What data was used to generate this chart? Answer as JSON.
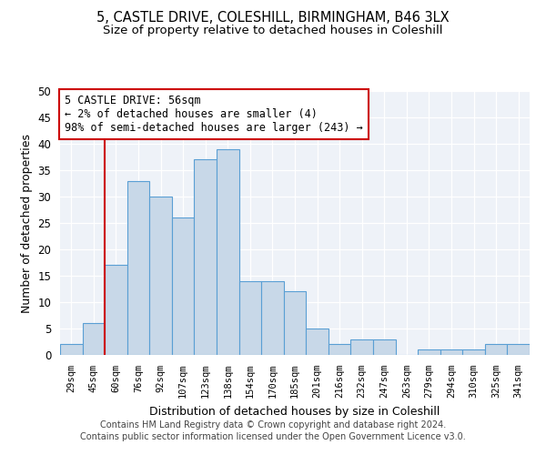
{
  "title_line1": "5, CASTLE DRIVE, COLESHILL, BIRMINGHAM, B46 3LX",
  "title_line2": "Size of property relative to detached houses in Coleshill",
  "xlabel": "Distribution of detached houses by size in Coleshill",
  "ylabel": "Number of detached properties",
  "bar_labels": [
    "29sqm",
    "45sqm",
    "60sqm",
    "76sqm",
    "92sqm",
    "107sqm",
    "123sqm",
    "138sqm",
    "154sqm",
    "170sqm",
    "185sqm",
    "201sqm",
    "216sqm",
    "232sqm",
    "247sqm",
    "263sqm",
    "279sqm",
    "294sqm",
    "310sqm",
    "325sqm",
    "341sqm"
  ],
  "bar_values": [
    2,
    6,
    17,
    33,
    30,
    26,
    37,
    39,
    14,
    14,
    12,
    5,
    2,
    3,
    3,
    0,
    1,
    1,
    1,
    2,
    2
  ],
  "bar_color": "#c8d8e8",
  "bar_edge_color": "#5a9fd4",
  "marker_label": "5 CASTLE DRIVE: 56sqm\n← 2% of detached houses are smaller (4)\n98% of semi-detached houses are larger (243) →",
  "vline_color": "#cc0000",
  "annotation_box_edge_color": "#cc0000",
  "ylim": [
    0,
    50
  ],
  "yticks": [
    0,
    5,
    10,
    15,
    20,
    25,
    30,
    35,
    40,
    45,
    50
  ],
  "background_color": "#eef2f8",
  "footer_line1": "Contains HM Land Registry data © Crown copyright and database right 2024.",
  "footer_line2": "Contains public sector information licensed under the Open Government Licence v3.0.",
  "title_fontsize": 10.5,
  "subtitle_fontsize": 9.5,
  "bar_width": 1.0,
  "vline_x": 1.5
}
